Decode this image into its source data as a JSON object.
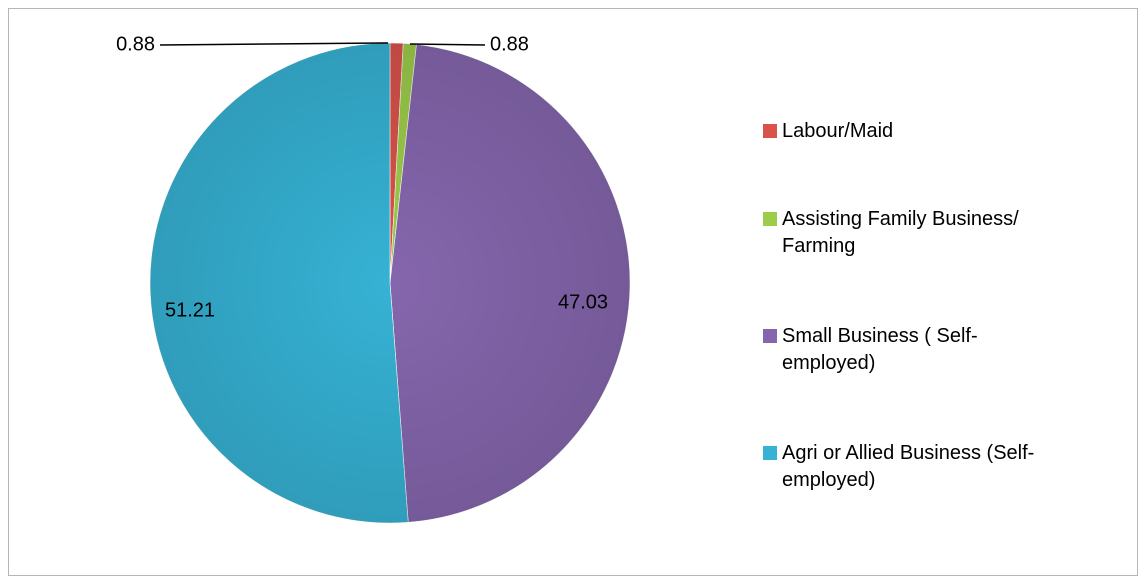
{
  "chart_data": {
    "type": "pie",
    "slices": [
      {
        "label": "Labour/Maid",
        "value": 0.88,
        "data_label": "0.88",
        "color": "#d9534a"
      },
      {
        "label": "Assisting Family Business/ Farming",
        "value": 0.88,
        "data_label": "0.88",
        "color": "#9dcc4a"
      },
      {
        "label": "Small Business ( Self-employed)",
        "value": 47.03,
        "data_label": "47.03",
        "color": "#8566ad"
      },
      {
        "label": "Agri or Allied Business (Self-employed)",
        "value": 51.21,
        "data_label": "51.21",
        "color": "#36b2d4"
      }
    ],
    "legend": {
      "position": "right",
      "entries": [
        {
          "line1": "Labour/Maid",
          "line2": ""
        },
        {
          "line1": "Assisting Family Business/",
          "line2": "Farming"
        },
        {
          "line1": "Small Business ( Self-",
          "line2": "employed)"
        },
        {
          "line1": "Agri or Allied Business (Self-",
          "line2": "employed)"
        }
      ]
    },
    "start_angle": "12 o'clock",
    "direction": "clockwise"
  }
}
